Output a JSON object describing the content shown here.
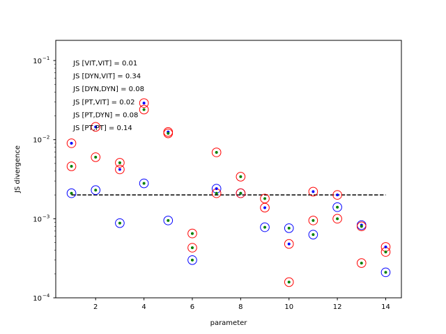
{
  "chart_data": {
    "type": "scatter",
    "title": "",
    "xlabel": "parameter",
    "ylabel": "JS divergence",
    "xlim": [
      0.35,
      14.65
    ],
    "ylim": [
      0.0001,
      0.18
    ],
    "yscale": "log",
    "grid": false,
    "x_ticks": [
      2,
      4,
      6,
      8,
      10,
      12,
      14
    ],
    "x_tick_labels": [
      "2",
      "4",
      "6",
      "8",
      "10",
      "12",
      "14"
    ],
    "y_ticks": [
      0.0001,
      0.001,
      0.01,
      0.1
    ],
    "y_tick_labels": [
      "10^-4",
      "10^-3",
      "10^-2",
      "10^-1"
    ],
    "threshold": {
      "y": 0.002,
      "x_range": [
        1,
        14
      ],
      "style": "dashed",
      "color": "#000000"
    },
    "annotations": [
      "JS [VIT,VIT] = 0.01",
      "JS [DYN,VIT] = 0.34",
      "JS [DYN,DYN] = 0.08",
      "JS [PT,VIT] = 0.02",
      "JS [PT,DYN] = 0.08",
      "JS [PT,PT] = 0.14"
    ],
    "series": [
      {
        "marker": "open-circle",
        "color": "#0000ff",
        "points": [
          [
            1,
            0.0021
          ],
          [
            2,
            0.0023
          ],
          [
            3,
            0.00088
          ],
          [
            4,
            0.0028
          ],
          [
            5,
            0.00095
          ],
          [
            6,
            0.0003
          ],
          [
            7,
            0.0024
          ],
          [
            8,
            0.0021
          ],
          [
            9,
            0.00078
          ],
          [
            10,
            0.00076
          ],
          [
            11,
            0.00063
          ],
          [
            12,
            0.0014
          ],
          [
            13,
            0.00083
          ],
          [
            14,
            0.00021
          ]
        ]
      },
      {
        "marker": "open-circle",
        "color": "#ff0000",
        "points": [
          [
            1,
            0.009
          ],
          [
            1,
            0.0046
          ],
          [
            2,
            0.0145
          ],
          [
            2,
            0.006
          ],
          [
            3,
            0.0051
          ],
          [
            3,
            0.0042
          ],
          [
            4,
            0.029
          ],
          [
            4,
            0.024
          ],
          [
            5,
            0.0125
          ],
          [
            5,
            0.012
          ],
          [
            6,
            0.00065
          ],
          [
            6,
            0.00043
          ],
          [
            7,
            0.0069
          ],
          [
            7,
            0.0021
          ],
          [
            8,
            0.0034
          ],
          [
            8,
            0.0021
          ],
          [
            9,
            0.0018
          ],
          [
            9,
            0.00138
          ],
          [
            10,
            0.00048
          ],
          [
            10,
            0.000158
          ],
          [
            11,
            0.0022
          ],
          [
            11,
            0.00095
          ],
          [
            12,
            0.002
          ],
          [
            12,
            0.001
          ],
          [
            13,
            0.0008
          ],
          [
            13,
            0.000275
          ],
          [
            14,
            0.00044
          ],
          [
            14,
            0.00038
          ]
        ]
      },
      {
        "marker": "dot",
        "color": "#0000ff",
        "points": [
          [
            1,
            0.009
          ],
          [
            2,
            0.0145
          ],
          [
            3,
            0.0042
          ],
          [
            4,
            0.029
          ],
          [
            5,
            0.0125
          ],
          [
            7,
            0.0024
          ],
          [
            8,
            0.0021
          ],
          [
            9,
            0.00138
          ],
          [
            10,
            0.00048
          ],
          [
            11,
            0.0022
          ],
          [
            12,
            0.002
          ],
          [
            13,
            0.00083
          ],
          [
            14,
            0.00044
          ]
        ]
      },
      {
        "marker": "dot",
        "color": "#008000",
        "points": [
          [
            1,
            0.0021
          ],
          [
            1,
            0.0046
          ],
          [
            2,
            0.0023
          ],
          [
            2,
            0.006
          ],
          [
            3,
            0.00088
          ],
          [
            3,
            0.0051
          ],
          [
            4,
            0.0028
          ],
          [
            4,
            0.024
          ],
          [
            5,
            0.00095
          ],
          [
            5,
            0.012
          ],
          [
            6,
            0.0003
          ],
          [
            6,
            0.00043
          ],
          [
            6,
            0.00065
          ],
          [
            7,
            0.0069
          ],
          [
            7,
            0.0021
          ],
          [
            8,
            0.0034
          ],
          [
            8,
            0.0021
          ],
          [
            9,
            0.00078
          ],
          [
            9,
            0.0018
          ],
          [
            10,
            0.00076
          ],
          [
            10,
            0.000158
          ],
          [
            11,
            0.00063
          ],
          [
            11,
            0.00095
          ],
          [
            12,
            0.0014
          ],
          [
            12,
            0.001
          ],
          [
            13,
            0.0008
          ],
          [
            13,
            0.000275
          ],
          [
            14,
            0.00021
          ],
          [
            14,
            0.00038
          ]
        ]
      }
    ]
  }
}
